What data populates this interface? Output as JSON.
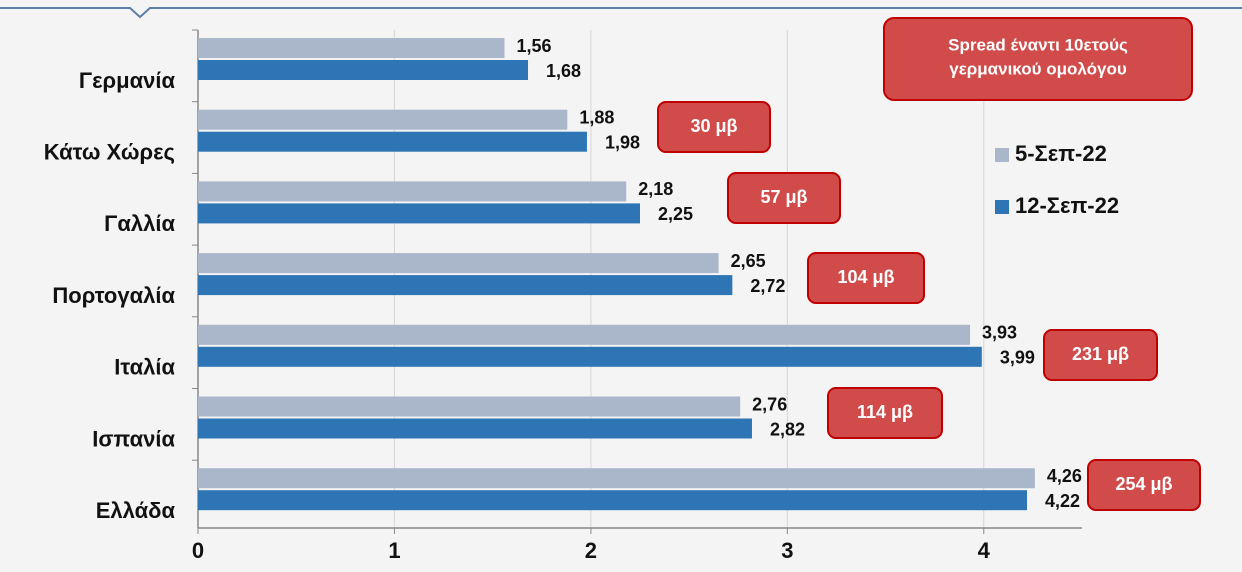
{
  "chart_data": {
    "type": "hbar",
    "categories": [
      "Γερμανία",
      "Κάτω Χώρες",
      "Γαλλία",
      "Πορτογαλία",
      "Ιταλία",
      "Ισπανία",
      "Ελλάδα"
    ],
    "series": [
      {
        "name": "5-Σεπ-22",
        "color": "#aab6c9",
        "values": [
          1.56,
          1.88,
          2.18,
          2.65,
          3.93,
          2.76,
          4.26
        ],
        "value_labels": [
          "1,56",
          "1,88",
          "2,18",
          "2,65",
          "3,93",
          "2,76",
          "4,26"
        ]
      },
      {
        "name": "12-Σεπ-22",
        "color": "#2e75b6",
        "values": [
          1.68,
          1.98,
          2.25,
          2.72,
          3.99,
          2.82,
          4.22
        ],
        "value_labels": [
          "1,68",
          "1,98",
          "2,25",
          "2,72",
          "3,99",
          "2,82",
          "4,22"
        ]
      }
    ],
    "xlim": [
      0,
      4.5
    ],
    "xticks": [
      0,
      1,
      2,
      3,
      4
    ],
    "grid": true,
    "note": [
      "Spread έναντι 10ετούς",
      "γερμανικού ομολόγου"
    ],
    "annotations": [
      "30 μβ",
      "57 μβ",
      "104 μβ",
      "231 μβ",
      "114 μβ",
      "254 μβ"
    ]
  }
}
